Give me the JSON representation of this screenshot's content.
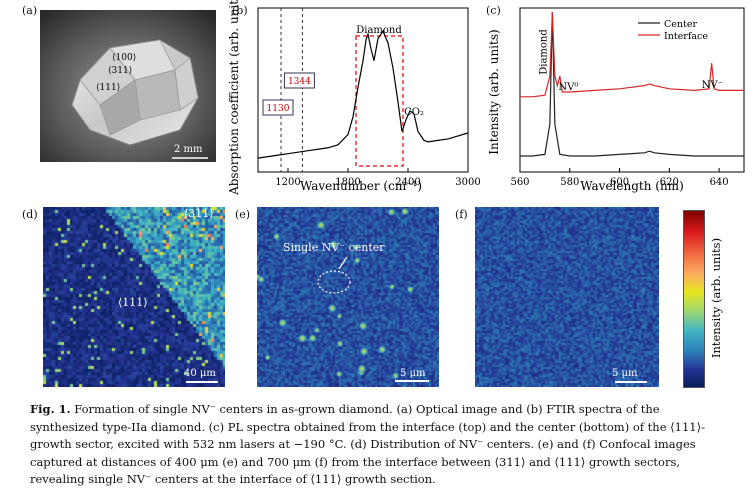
{
  "panel_labels": [
    "(a)",
    "(b)",
    "(c)",
    "(d)",
    "(e)",
    "(f)"
  ],
  "panel_a": {
    "facets": [
      "⟨100⟩",
      "⟨311⟩",
      "⟨111⟩"
    ],
    "scalebar": "2 mm"
  },
  "chart_data": [
    {
      "type": "line",
      "id": "b",
      "xlabel": "Wavenumber (cm⁻¹)",
      "ylabel": "Absorption coefficient (arb. units)",
      "xlim": [
        900,
        3000
      ],
      "xticks": [
        "1200",
        "1800",
        "2400",
        "3000"
      ],
      "x": [
        900,
        1000,
        1100,
        1200,
        1300,
        1400,
        1500,
        1600,
        1700,
        1800,
        1850,
        1900,
        1950,
        1980,
        2000,
        2030,
        2060,
        2100,
        2150,
        2200,
        2250,
        2300,
        2340,
        2380,
        2420,
        2460,
        2500,
        2560,
        2600,
        2700,
        2800,
        2900,
        3000
      ],
      "y": [
        0.04,
        0.05,
        0.06,
        0.07,
        0.08,
        0.09,
        0.1,
        0.11,
        0.13,
        0.2,
        0.32,
        0.52,
        0.7,
        0.84,
        0.88,
        0.78,
        0.7,
        0.85,
        0.9,
        0.82,
        0.65,
        0.42,
        0.22,
        0.3,
        0.36,
        0.34,
        0.22,
        0.16,
        0.15,
        0.16,
        0.17,
        0.19,
        0.21
      ],
      "annotations": {
        "diamond": "Diamond",
        "co2": "CO₂",
        "l1130": "1130",
        "l1344": "1344"
      }
    },
    {
      "type": "line",
      "id": "c",
      "xlabel": "Wavelength (nm)",
      "ylabel": "Intensity (arb. units)",
      "xlim": [
        560,
        650
      ],
      "xticks": [
        "560",
        "580",
        "600",
        "620",
        "640"
      ],
      "series": [
        {
          "name": "Center",
          "color": "#222222",
          "x": [
            560,
            565,
            570,
            572,
            573,
            574,
            576,
            580,
            590,
            600,
            610,
            612,
            614,
            620,
            630,
            637,
            640,
            650
          ],
          "y": [
            0.1,
            0.1,
            0.11,
            0.3,
            1.0,
            0.3,
            0.11,
            0.1,
            0.1,
            0.11,
            0.12,
            0.13,
            0.12,
            0.11,
            0.1,
            0.1,
            0.1,
            0.1
          ]
        },
        {
          "name": "Interface",
          "color": "#d62728",
          "x": [
            560,
            565,
            570,
            572,
            573,
            574,
            575,
            576,
            577,
            580,
            590,
            600,
            610,
            612,
            614,
            620,
            630,
            636,
            637,
            638,
            640,
            650
          ],
          "y": [
            0.47,
            0.47,
            0.48,
            0.6,
            1.0,
            0.6,
            0.54,
            0.6,
            0.5,
            0.5,
            0.51,
            0.52,
            0.54,
            0.55,
            0.54,
            0.52,
            0.51,
            0.52,
            0.68,
            0.52,
            0.51,
            0.51
          ]
        }
      ],
      "annotations": {
        "diamond": "Diamond",
        "nv0": "NV⁰",
        "nvm": "NV⁻"
      }
    }
  ],
  "panel_d": {
    "label311": "⟨311⟩",
    "label111": "⟨111⟩",
    "scalebar": "40 μm"
  },
  "panel_e": {
    "annotation": "Single NV⁻ center",
    "scalebar": "5 μm"
  },
  "panel_f": {
    "scalebar": "5 μm"
  },
  "colorbar": {
    "label": "Intensity (arb. units)"
  },
  "caption": {
    "fig": "Fig. 1.",
    "text": "Formation of single NV⁻ centers in as-grown diamond. (a) Optical image and (b) FTIR spectra of the synthesized type-IIa diamond. (c) PL spectra obtained from the interface (top) and the center (bottom) of the ⟨111⟩-growth sector, excited with 532 nm lasers at −190 °C. (d) Distribution of NV⁻ centers. (e) and (f) Confocal images captured at distances of 400 μm (e) and 700 μm (f) from the interface between ⟨311⟩ and ⟨111⟩ growth sectors, revealing single NV⁻ centers at the interface of ⟨111⟩ growth section."
  }
}
